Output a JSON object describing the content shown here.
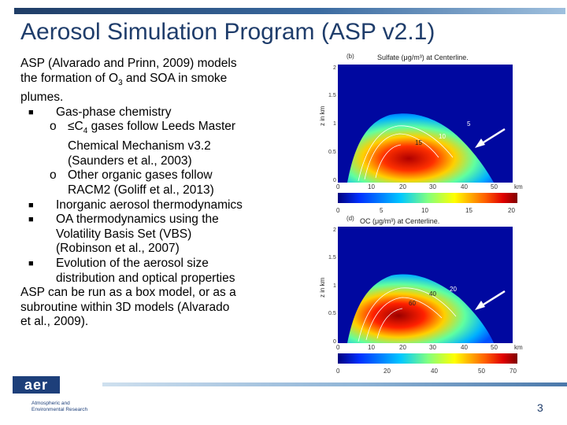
{
  "slide": {
    "title": "Aerosol Simulation Program (ASP v2.1)",
    "page_number": "3"
  },
  "body_text": {
    "intro": [
      "ASP (Alvarado and Prinn, 2009) models",
      "the formation of O",
      "3",
      " and SOA in smoke",
      "plumes."
    ],
    "bullet_gas": "Gas-phase chemistry",
    "sub1": [
      "≤C",
      "4",
      " gases follow Leeds Master",
      "Chemical Mechanism v3.2",
      "(Saunders et al., 2003)"
    ],
    "sub2": [
      "Other organic gases follow",
      "RACM2 (Goliff et al., 2013)"
    ],
    "bullet_inorg": "Inorganic aerosol thermodynamics",
    "bullet_oa": [
      "OA thermodynamics using the",
      "Volatility Basis Set (VBS)",
      "(Robinson et al., 2007)"
    ],
    "bullet_evol": [
      "Evolution of the aerosol size",
      "distribution and optical properties"
    ],
    "closing": [
      "ASP can be run as a box model, or as a",
      "subroutine within 3D models (Alvarado",
      "et al., 2009)."
    ]
  },
  "figure": {
    "panel_b": {
      "label": "(b)",
      "title": "Sulfate (μg/m³) at Centerline.",
      "y_axis_label": "z in km",
      "y_ticks": [
        "2",
        "1.5",
        "1",
        "0.5",
        "0"
      ],
      "x_ticks": [
        "0",
        "10",
        "20",
        "30",
        "40",
        "50"
      ],
      "x_unit": "km",
      "contour_labels": [
        "5",
        "10",
        "15"
      ],
      "colorbar_ticks": [
        "0",
        "5",
        "10",
        "15",
        "20"
      ]
    },
    "panel_d": {
      "label": "(d)",
      "title": "OC (μg/m³) at Centerline.",
      "y_axis_label": "z in km",
      "y_ticks": [
        "2",
        "1.5",
        "1",
        "0.5",
        "0"
      ],
      "x_ticks": [
        "0",
        "10",
        "20",
        "30",
        "40",
        "50"
      ],
      "x_unit": "km",
      "contour_labels": [
        "20",
        "40",
        "60"
      ],
      "colorbar_ticks": [
        "0",
        "20",
        "40",
        "50",
        "70"
      ]
    }
  },
  "logo": {
    "mark": "aer",
    "line1": "Atmospheric and",
    "line2": "Environmental Research"
  },
  "colors": {
    "title": "#1f3d6b",
    "logo": "#1d3f7a",
    "colormap": [
      "#00007f",
      "#0040ff",
      "#00bfff",
      "#7fff7f",
      "#ffff00",
      "#ff7f00",
      "#ff0000",
      "#7f0000"
    ]
  }
}
